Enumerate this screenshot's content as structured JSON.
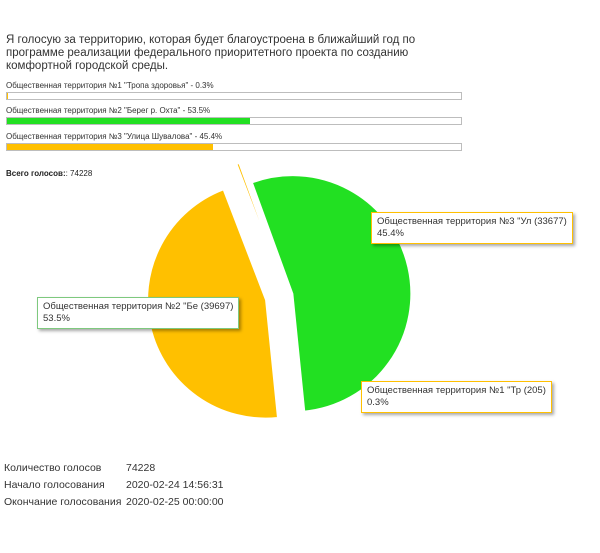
{
  "poll": {
    "question": "Я голосую за территорию, которая будет благоустроена в ближайший год по программе реализации федерального приоритетного проекта по созданию комфортной городской среды.",
    "options": [
      {
        "label": "Общественная территория №1 \"Тропа здоровья\" - 0.3%",
        "percent": 0.3,
        "color": "#ffc000"
      },
      {
        "label": "Общественная территория №2 \"Берег р. Охта\" - 53.5%",
        "percent": 53.5,
        "color": "#22e022"
      },
      {
        "label": "Общественная территория №3 \"Улица Шувалова\" - 45.4%",
        "percent": 45.4,
        "color": "#ffc000"
      }
    ],
    "total_label": "Всего голосов:",
    "total_value": ": 74228"
  },
  "chart_data": {
    "type": "pie",
    "slices": [
      {
        "label": "Общественная территория №1 \"Тр (205)",
        "value": 205,
        "percent_label": "0.3%",
        "color": "#ffc000"
      },
      {
        "label": "Общественная территория №2 \"Бе (39697)",
        "value": 39697,
        "percent_label": "53.5%",
        "color": "#22e022"
      },
      {
        "label": "Общественная территория №3 \"Ул (33677)",
        "value": 33677,
        "percent_label": "45.4%",
        "color": "#ffc000"
      }
    ]
  },
  "stats": [
    {
      "label": "Количество голосов",
      "value": "74228"
    },
    {
      "label": "Начало голосования",
      "value": "2020-02-24 14:56:31"
    },
    {
      "label": "Окончание голосования",
      "value": "2020-02-25 00:00:00"
    }
  ]
}
